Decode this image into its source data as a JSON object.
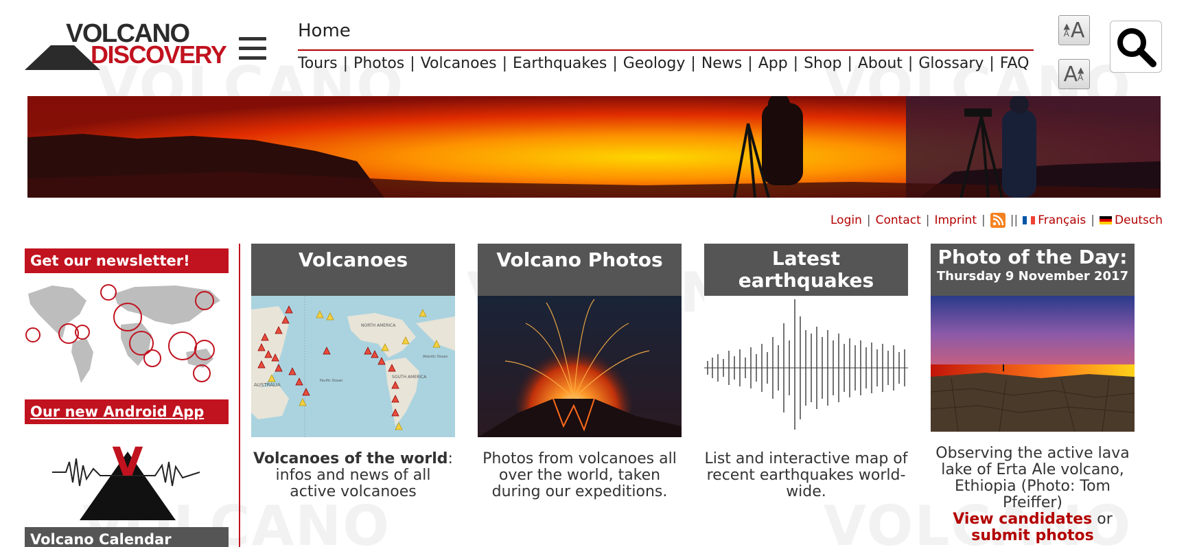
{
  "logo": {
    "line1": "VOLCANO",
    "line2": "DISCOVERY"
  },
  "watermark": {
    "word1": "VOLCANO",
    "word2": "DISCOVERY"
  },
  "nav": {
    "home": "Home",
    "links": [
      "Tours",
      "Photos",
      "Volcanoes",
      "Earthquakes",
      "Geology",
      "News",
      "App",
      "Shop",
      "About",
      "Glossary",
      "FAQ"
    ],
    "separator": "|"
  },
  "font_controls": {
    "glyph": "A"
  },
  "utility": {
    "login": "Login",
    "contact": "Contact",
    "imprint": "Imprint",
    "double_sep": "||",
    "francais": "Français",
    "deutsch": "Deutsch",
    "sep": "|"
  },
  "sidebar": {
    "newsletter": "Get our newsletter!",
    "android": "Our new Android App",
    "app_letter": "V",
    "next_head": "Volcano Calendar"
  },
  "cards": {
    "volcanoes": {
      "title": "Volcanoes",
      "link": "Volcanoes of the world",
      "text": ": infos and news of all active volcanoes",
      "map_labels": [
        "NORTH AMERICA",
        "SOUTH AMERICA",
        "AUSTRALIA",
        "Pacific Ocean",
        "Atlantic Ocean"
      ]
    },
    "photos": {
      "title": "Volcano Photos",
      "text": "Photos from volcanoes all over the world, taken during our expeditions."
    },
    "earthquakes": {
      "title": "Latest earthquakes",
      "text": "List and interactive map of recent earthquakes world-wide."
    },
    "potd": {
      "title": "Photo of the Day:",
      "date": "Thursday 9 November 2017",
      "text": "Observing the active lava lake of Erta Ale volcano, Ethiopia (Photo: Tom Pfeiffer)",
      "link1": "View candidates",
      "or": "or",
      "link2": "submit photos"
    }
  },
  "colors": {
    "brand_red": "#c1121f",
    "card_gray": "#555555",
    "link_red": "#b30000"
  }
}
